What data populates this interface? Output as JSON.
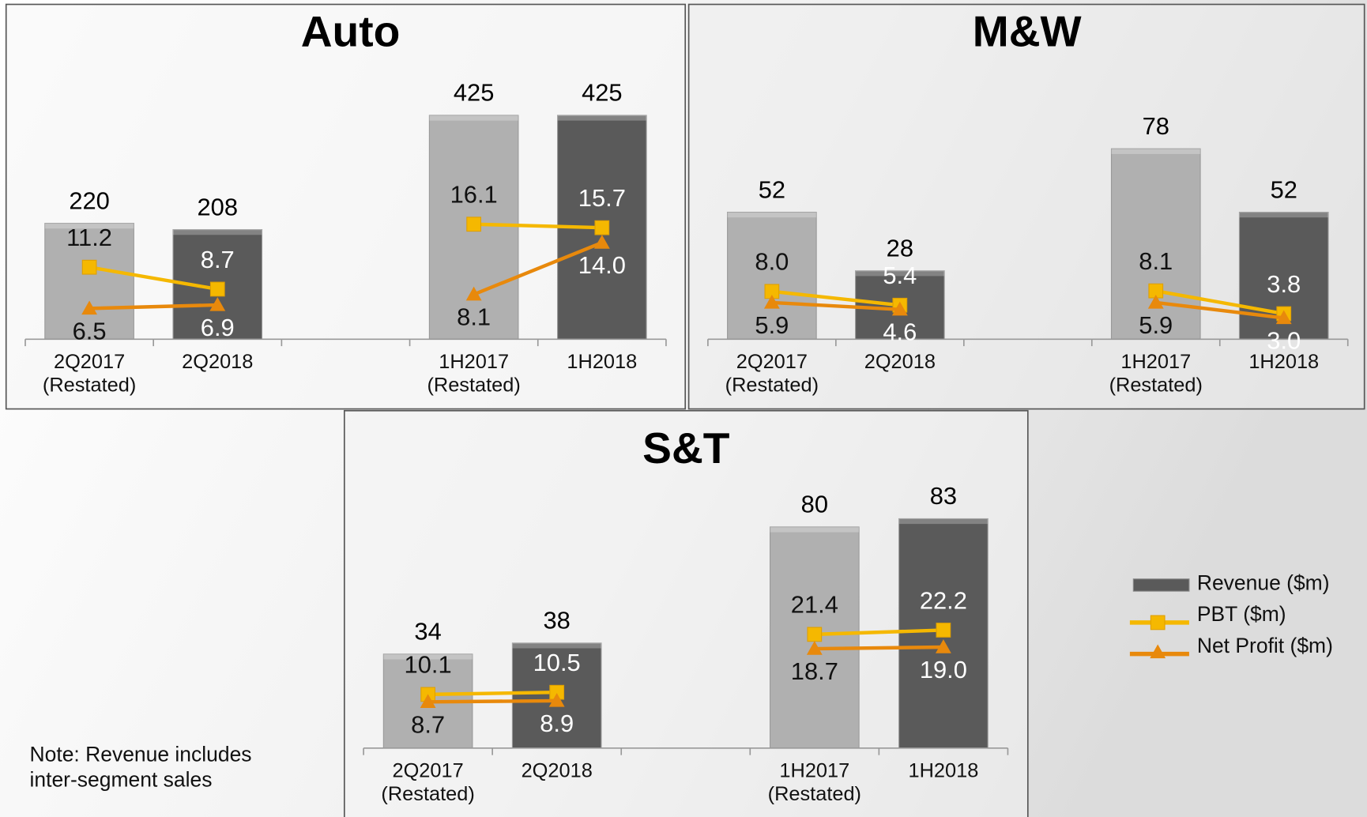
{
  "chart_data": [
    {
      "type": "bar_line",
      "title": "Auto",
      "categories": [
        [
          "2Q2017",
          "(Restated)"
        ],
        [
          "2Q2018"
        ],
        null,
        [
          "1H2017",
          "(Restated)"
        ],
        [
          "1H2018"
        ]
      ],
      "ylim": [
        0,
        500
      ],
      "y2lim": [
        3,
        33
      ],
      "series": [
        {
          "name": "Revenue ($m)",
          "color": "#5a5a5a",
          "colors": [
            "#b0b0b0",
            "#5a5a5a",
            null,
            "#b0b0b0",
            "#5a5a5a"
          ],
          "values": [
            220,
            208,
            null,
            425,
            425
          ]
        },
        {
          "name": "PBT ($m)",
          "axis": "y2",
          "color": "#f5b800",
          "marker": "square",
          "values": [
            11.2,
            8.7,
            null,
            16.1,
            15.7
          ],
          "value_labels": [
            "11.2",
            "8.7",
            null,
            "16.1",
            "15.7"
          ]
        },
        {
          "name": "Net Profit ($m)",
          "axis": "y2",
          "color": "#e8890c",
          "marker": "triangle",
          "values": [
            6.5,
            6.9,
            null,
            8.1,
            14.0
          ],
          "value_labels": [
            "6.5",
            "6.9",
            null,
            "8.1",
            "14.0"
          ]
        }
      ]
    },
    {
      "type": "bar_line",
      "title": "M&W",
      "categories": [
        [
          "2Q2017",
          "(Restated)"
        ],
        [
          "2Q2018"
        ],
        null,
        [
          "1H2017",
          "(Restated)"
        ],
        [
          "1H2018"
        ]
      ],
      "ylim": [
        0,
        100
      ],
      "y2lim": [
        -1,
        45
      ],
      "series": [
        {
          "name": "Revenue ($m)",
          "color": "#5a5a5a",
          "colors": [
            "#b0b0b0",
            "#5a5a5a",
            null,
            "#b0b0b0",
            "#5a5a5a"
          ],
          "values": [
            52,
            28,
            null,
            78,
            52
          ]
        },
        {
          "name": "PBT ($m)",
          "axis": "y2",
          "color": "#f5b800",
          "marker": "square",
          "values": [
            8.0,
            5.4,
            null,
            8.1,
            3.8
          ],
          "value_labels": [
            "8.0",
            "5.4",
            null,
            "8.1",
            "3.8"
          ]
        },
        {
          "name": "Net Profit ($m)",
          "axis": "y2",
          "color": "#e8890c",
          "marker": "triangle",
          "values": [
            5.9,
            4.6,
            null,
            5.9,
            3.0
          ],
          "value_labels": [
            "5.9",
            "4.6",
            null,
            "5.9",
            "3.0"
          ]
        }
      ]
    },
    {
      "type": "bar_line",
      "title": "S&T",
      "categories": [
        [
          "2Q2017",
          "(Restated)"
        ],
        [
          "2Q2018"
        ],
        null,
        [
          "1H2017",
          "(Restated)"
        ],
        [
          "1H2018"
        ]
      ],
      "ylim": [
        0,
        100
      ],
      "y2lim": [
        0,
        52
      ],
      "series": [
        {
          "name": "Revenue ($m)",
          "color": "#5a5a5a",
          "colors": [
            "#b0b0b0",
            "#5a5a5a",
            null,
            "#b0b0b0",
            "#5a5a5a"
          ],
          "values": [
            34,
            38,
            null,
            80,
            83
          ]
        },
        {
          "name": "PBT ($m)",
          "axis": "y2",
          "color": "#f5b800",
          "marker": "square",
          "values": [
            10.1,
            10.5,
            null,
            21.4,
            22.2
          ],
          "value_labels": [
            "10.1",
            "10.5",
            null,
            "21.4",
            "22.2"
          ]
        },
        {
          "name": "Net Profit ($m)",
          "axis": "y2",
          "color": "#e8890c",
          "marker": "triangle",
          "values": [
            8.7,
            8.9,
            null,
            18.7,
            19.0
          ],
          "value_labels": [
            "8.7",
            "8.9",
            null,
            "18.7",
            "19.0"
          ]
        }
      ]
    }
  ],
  "note": [
    "Note: Revenue includes",
    "inter-segment sales"
  ]
}
